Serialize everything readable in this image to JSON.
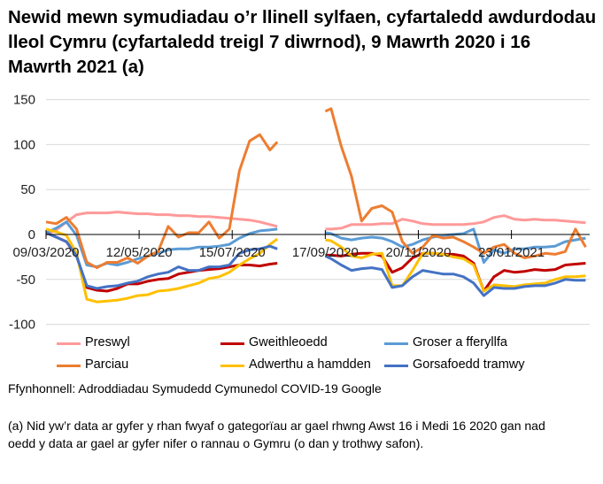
{
  "chart_data": {
    "type": "line",
    "title": "Newid mewn symudiadau o’r llinell sylfaen, cyfartaledd awdurdodau lleol Cymru (cyfartaledd treigl 7 diwrnod), 9 Mawrth 2020 i 16 Mawrth 2021 (a)",
    "xlabel": "",
    "ylabel": "",
    "ylim": [
      -100,
      150
    ],
    "yticks": [
      "150",
      "100",
      "50",
      "0",
      "-50",
      "-100"
    ],
    "xtick_labels": [
      "09/03/2020",
      "12/05/2020",
      "15/07/2020",
      "17/09/2020",
      "20/11/2020",
      "23/01/2021"
    ],
    "xtick_dates": [
      "2020-03-09",
      "2020-05-12",
      "2020-07-15",
      "2020-09-17",
      "2020-11-20",
      "2021-01-23"
    ],
    "xlim": [
      "2020-03-09",
      "2021-03-16"
    ],
    "grid": "horizontal",
    "legend_position": "bottom",
    "x": [
      "2020-03-09",
      "2020-03-16",
      "2020-03-23",
      "2020-03-30",
      "2020-04-06",
      "2020-04-13",
      "2020-04-20",
      "2020-04-27",
      "2020-05-04",
      "2020-05-11",
      "2020-05-18",
      "2020-05-25",
      "2020-06-01",
      "2020-06-08",
      "2020-06-15",
      "2020-06-22",
      "2020-06-29",
      "2020-07-06",
      "2020-07-13",
      "2020-07-20",
      "2020-07-27",
      "2020-08-03",
      "2020-08-10",
      "2020-08-15",
      "2020-08-31",
      "2020-09-17",
      "2020-09-21",
      "2020-09-28",
      "2020-10-05",
      "2020-10-12",
      "2020-10-19",
      "2020-10-26",
      "2020-11-02",
      "2020-11-09",
      "2020-11-16",
      "2020-11-23",
      "2020-11-30",
      "2020-12-07",
      "2020-12-14",
      "2020-12-21",
      "2020-12-28",
      "2021-01-04",
      "2021-01-11",
      "2021-01-18",
      "2021-01-25",
      "2021-02-01",
      "2021-02-08",
      "2021-02-15",
      "2021-02-22",
      "2021-03-01",
      "2021-03-08",
      "2021-03-15"
    ],
    "series": [
      {
        "name": "Preswyl",
        "color": "#FF9999",
        "values": [
          0,
          5,
          14,
          22,
          24,
          24,
          24,
          25,
          24,
          23,
          23,
          22,
          22,
          21,
          21,
          20,
          20,
          19,
          18,
          17,
          16,
          14,
          11,
          9,
          null,
          6,
          6,
          7,
          11,
          11,
          11,
          12,
          12,
          17,
          15,
          12,
          11,
          11,
          11,
          11,
          12,
          14,
          19,
          21,
          17,
          16,
          17,
          16,
          16,
          15,
          14,
          13
        ]
      },
      {
        "name": "Gweithleoedd",
        "color": "#C00000",
        "values": [
          2,
          -3,
          -8,
          -24,
          -59,
          -62,
          -63,
          -60,
          -55,
          -55,
          -52,
          -50,
          -49,
          -44,
          -42,
          -40,
          -39,
          -38,
          -36,
          -34,
          -34,
          -35,
          -33,
          -32,
          null,
          -23,
          -23,
          -24,
          -22,
          -21,
          -21,
          -24,
          -42,
          -37,
          -26,
          -21,
          -21,
          -22,
          -22,
          -24,
          -32,
          -63,
          -47,
          -40,
          -42,
          -41,
          -39,
          -40,
          -39,
          -34,
          -33,
          -32
        ]
      },
      {
        "name": "Groser a fferyllfa",
        "color": "#5B9BD5",
        "values": [
          2,
          7,
          14,
          -1,
          -34,
          -36,
          -32,
          -34,
          -31,
          -27,
          -24,
          -21,
          -17,
          -16,
          -16,
          -14,
          -14,
          -13,
          -11,
          -4,
          1,
          4,
          5,
          6,
          null,
          2,
          1,
          -4,
          -6,
          -4,
          -3,
          -4,
          -8,
          -14,
          -11,
          -6,
          -3,
          -1,
          0,
          1,
          6,
          -31,
          -17,
          -21,
          -16,
          -16,
          -14,
          -14,
          -13,
          -8,
          -6,
          -4
        ]
      },
      {
        "name": "Parciau",
        "color": "#ED7D31",
        "values": [
          14,
          12,
          19,
          6,
          -31,
          -37,
          -31,
          -31,
          -26,
          -32,
          -24,
          -19,
          9,
          -3,
          2,
          2,
          14,
          -4,
          6,
          71,
          104,
          111,
          94,
          103,
          null,
          137,
          140,
          98,
          65,
          15,
          29,
          32,
          25,
          -8,
          -21,
          -14,
          -1,
          -4,
          -3,
          -8,
          -14,
          -21,
          -14,
          -11,
          -21,
          -26,
          -24,
          -21,
          -22,
          -19,
          6,
          -14
        ]
      },
      {
        "name": "Adwerthu a hamdden",
        "color": "#FFC000",
        "values": [
          6,
          3,
          -1,
          -21,
          -72,
          -75,
          -74,
          -73,
          -71,
          -68,
          -67,
          -63,
          -62,
          -60,
          -57,
          -54,
          -49,
          -47,
          -42,
          -34,
          -27,
          -21,
          -11,
          -5,
          null,
          -6,
          -7,
          -14,
          -24,
          -26,
          -22,
          -21,
          -57,
          -57,
          -40,
          -21,
          -21,
          -22,
          -25,
          -27,
          -34,
          -63,
          -56,
          -57,
          -58,
          -56,
          -55,
          -54,
          -50,
          -47,
          -47,
          -46
        ]
      },
      {
        "name": "Gorsafoedd tramwy",
        "color": "#4472C4",
        "values": [
          2,
          -3,
          -8,
          -24,
          -57,
          -60,
          -58,
          -57,
          -54,
          -52,
          -47,
          -44,
          -42,
          -36,
          -40,
          -40,
          -36,
          -36,
          -34,
          -21,
          -17,
          -16,
          -13,
          -16,
          null,
          -24,
          -27,
          -34,
          -40,
          -38,
          -37,
          -39,
          -59,
          -57,
          -47,
          -40,
          -42,
          -44,
          -44,
          -47,
          -54,
          -68,
          -59,
          -60,
          -60,
          -58,
          -57,
          -57,
          -54,
          -50,
          -51,
          -51
        ]
      }
    ]
  },
  "source": "Ffynhonnell: Adroddiadau Symudedd Cymunedol COVID-19 Google",
  "footnote": "(a) Nid yw’r data ar gyfer y rhan fwyaf o gategorïau ar gael rhwng Awst 16 i Medi 16 2020 gan nad oedd y data ar gael ar gyfer nifer o rannau o Gymru (o dan y trothwy safon)."
}
